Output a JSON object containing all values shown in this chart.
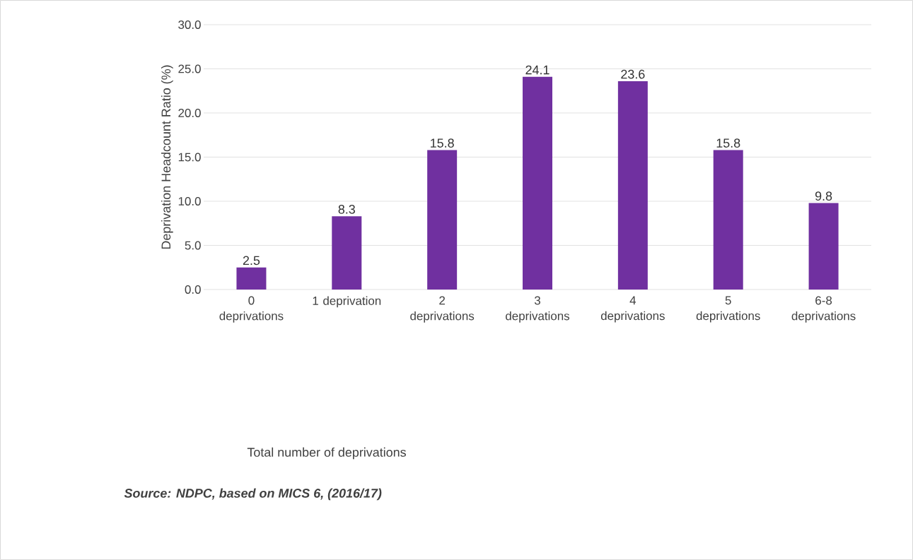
{
  "chart_data": {
    "type": "bar",
    "ylabel": "Deprivation Headcount Ratio (%)",
    "categories": [
      "0 deprivations",
      "1 deprivation",
      "2 deprivations",
      "3 deprivations",
      "4 deprivations",
      "5 deprivations",
      "6-8 deprivations"
    ],
    "values": [
      2.5,
      8.3,
      15.8,
      24.1,
      23.6,
      15.8,
      9.8
    ],
    "color": "#7030a0",
    "data_labels": true,
    "grid": "y",
    "ylim": [
      0,
      30
    ],
    "yticks": [
      {
        "value": 0,
        "label": "0.0"
      },
      {
        "value": 5,
        "label": "5.0"
      },
      {
        "value": 10,
        "label": "10.0"
      },
      {
        "value": 15,
        "label": "15.0"
      },
      {
        "value": 20,
        "label": "20.0"
      },
      {
        "value": 25,
        "label": "25.0"
      },
      {
        "value": 30,
        "label": "30.0"
      }
    ],
    "annotations": [
      "Total number of deprivations",
      "Source: NDPC, based on MICS 6, (2016/17)"
    ]
  }
}
